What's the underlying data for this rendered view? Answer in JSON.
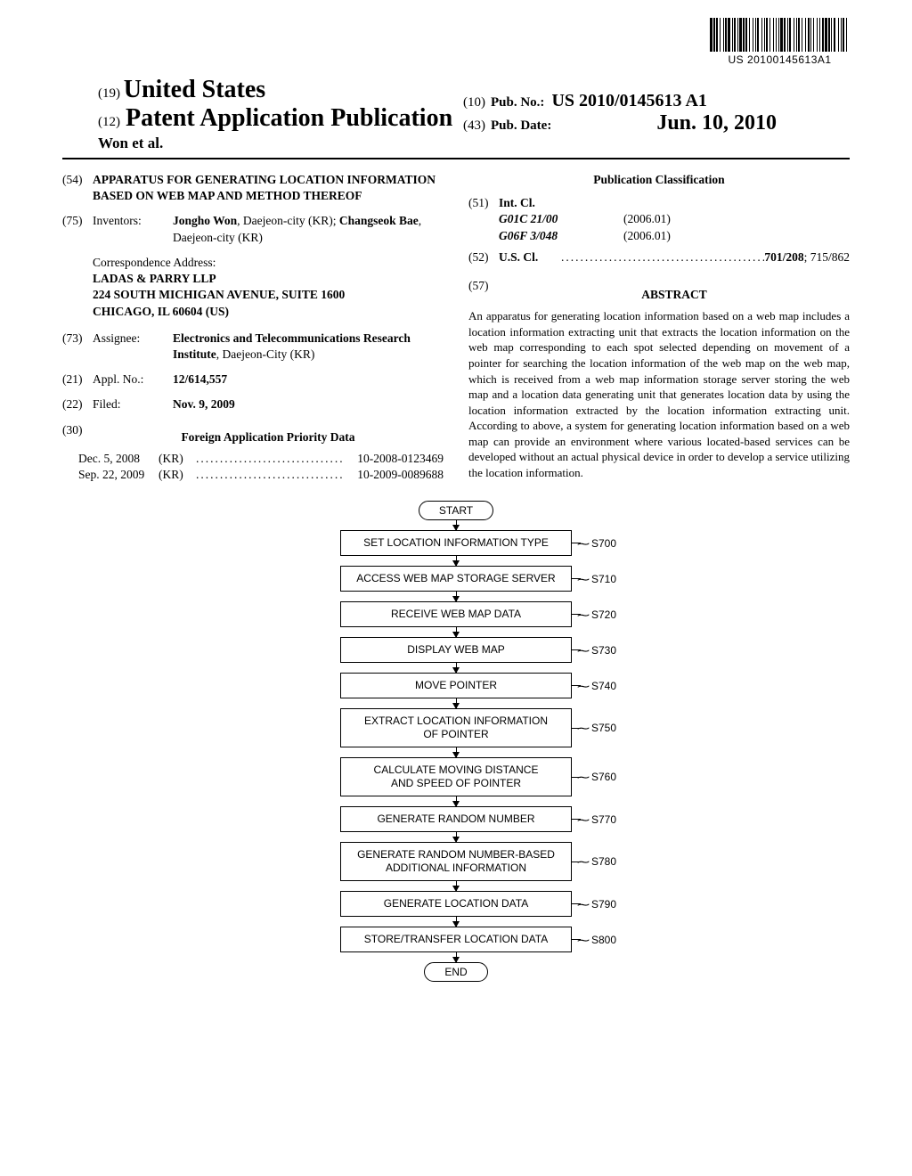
{
  "barcode": {
    "text": "US 20100145613A1",
    "bars": [
      3,
      1,
      2,
      1,
      2,
      2,
      1,
      3,
      1,
      1,
      2,
      1,
      3,
      2,
      1,
      1,
      2,
      2,
      1,
      1,
      3,
      1,
      2,
      1,
      2,
      2,
      1,
      3,
      1,
      2,
      1,
      1,
      2,
      3,
      1,
      2,
      1,
      1,
      2,
      2,
      1,
      3,
      1,
      2,
      1,
      2,
      1,
      1,
      3,
      1,
      2,
      2,
      1,
      1,
      2,
      3,
      1,
      2,
      1,
      1,
      2,
      2,
      1,
      3,
      1,
      2,
      2,
      1,
      1,
      2,
      1,
      3,
      1,
      2,
      1,
      2,
      2,
      1,
      3,
      1,
      2,
      1,
      1,
      2,
      2,
      3,
      1,
      2,
      1,
      1,
      2,
      2,
      1,
      3
    ]
  },
  "header": {
    "code19": "(19)",
    "country": "United States",
    "code12": "(12)",
    "pubType": "Patent Application Publication",
    "authors": "Won et al.",
    "code10": "(10)",
    "pubNoLabel": "Pub. No.:",
    "pubNo": "US 2010/0145613 A1",
    "code43": "(43)",
    "pubDateLabel": "Pub. Date:",
    "pubDate": "Jun. 10, 2010"
  },
  "left": {
    "code54": "(54)",
    "title": "APPARATUS FOR GENERATING LOCATION INFORMATION BASED ON WEB MAP AND METHOD THEREOF",
    "code75": "(75)",
    "inventorsLabel": "Inventors:",
    "inventors": "Jongho Won, Daejeon-city (KR); Changseok Bae, Daejeon-city (KR)",
    "corrLabel": "Correspondence Address:",
    "corrName": "LADAS & PARRY LLP",
    "corrStreet": "224 SOUTH MICHIGAN AVENUE, SUITE 1600",
    "corrCity": "CHICAGO, IL 60604 (US)",
    "code73": "(73)",
    "assigneeLabel": "Assignee:",
    "assigneeName": "Electronics and Telecommunications Research Institute",
    "assigneeLoc": ", Daejeon-City (KR)",
    "code21": "(21)",
    "applLabel": "Appl. No.:",
    "applNo": "12/614,557",
    "code22": "(22)",
    "filedLabel": "Filed:",
    "filedDate": "Nov. 9, 2009",
    "code30": "(30)",
    "priorityHeader": "Foreign Application Priority Data",
    "priority": [
      {
        "date": "Dec. 5, 2008",
        "cc": "(KR)",
        "num": "10-2008-0123469"
      },
      {
        "date": "Sep. 22, 2009",
        "cc": "(KR)",
        "num": "10-2009-0089688"
      }
    ]
  },
  "right": {
    "pubClassHeader": "Publication Classification",
    "code51": "(51)",
    "intclLabel": "Int. Cl.",
    "intcl": [
      {
        "code": "G01C 21/00",
        "year": "(2006.01)"
      },
      {
        "code": "G06F 3/048",
        "year": "(2006.01)"
      }
    ],
    "code52": "(52)",
    "usclLabel": "U.S. Cl.",
    "usclVal": "701/208; 715/862",
    "code57": "(57)",
    "abstractHeader": "ABSTRACT",
    "abstract": "An apparatus for generating location information based on a web map includes a location information extracting unit that extracts the location information on the web map corresponding to each spot selected depending on movement of a pointer for searching the location information of the web map on the web map, which is received from a web map information storage server storing the web map and a location data generating unit that generates location data by using the location information extracted by the location information extracting unit. According to above, a system for generating location information based on a web map can provide an environment where various located-based services can be developed without an actual physical device in order to develop a service utilizing the location information."
  },
  "flowchart": {
    "start": "START",
    "end": "END",
    "arrowHeight": 11,
    "steps": [
      {
        "text": "SET LOCATION INFORMATION TYPE",
        "label": "S700"
      },
      {
        "text": "ACCESS WEB MAP STORAGE SERVER",
        "label": "S710"
      },
      {
        "text": "RECEIVE WEB MAP DATA",
        "label": "S720"
      },
      {
        "text": "DISPLAY WEB MAP",
        "label": "S730"
      },
      {
        "text": "MOVE POINTER",
        "label": "S740"
      },
      {
        "text": "EXTRACT LOCATION INFORMATION\nOF POINTER",
        "label": "S750"
      },
      {
        "text": "CALCULATE MOVING DISTANCE\nAND SPEED OF POINTER",
        "label": "S760"
      },
      {
        "text": "GENERATE RANDOM NUMBER",
        "label": "S770"
      },
      {
        "text": "GENERATE RANDOM NUMBER-BASED\nADDITIONAL INFORMATION",
        "label": "S780"
      },
      {
        "text": "GENERATE LOCATION DATA",
        "label": "S790"
      },
      {
        "text": "STORE/TRANSFER LOCATION DATA",
        "label": "S800"
      }
    ]
  }
}
